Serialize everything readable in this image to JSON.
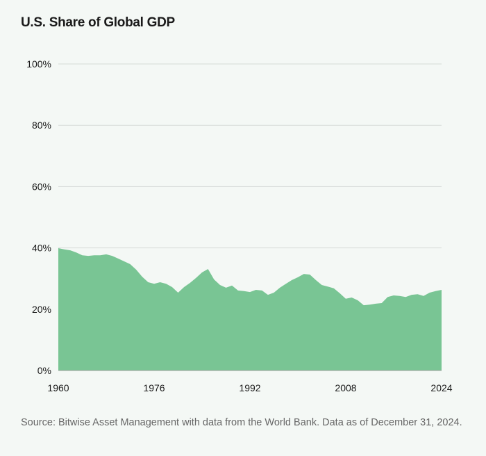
{
  "chart_data": {
    "type": "area",
    "title": "U.S. Share of Global GDP",
    "xlabel": "",
    "ylabel": "",
    "xlim": [
      1960,
      2024
    ],
    "ylim": [
      0,
      100
    ],
    "x_ticks": [
      "1960",
      "1976",
      "1992",
      "2008",
      "2024"
    ],
    "y_ticks": [
      "0%",
      "20%",
      "40%",
      "60%",
      "80%",
      "100%"
    ],
    "grid": true,
    "color": "#79c594",
    "x": [
      1960,
      1961,
      1962,
      1963,
      1964,
      1965,
      1966,
      1967,
      1968,
      1969,
      1970,
      1971,
      1972,
      1973,
      1974,
      1975,
      1976,
      1977,
      1978,
      1979,
      1980,
      1981,
      1982,
      1983,
      1984,
      1985,
      1986,
      1987,
      1988,
      1989,
      1990,
      1991,
      1992,
      1993,
      1994,
      1995,
      1996,
      1997,
      1998,
      1999,
      2000,
      2001,
      2002,
      2003,
      2004,
      2005,
      2006,
      2007,
      2008,
      2009,
      2010,
      2011,
      2012,
      2013,
      2014,
      2015,
      2016,
      2017,
      2018,
      2019,
      2020,
      2021,
      2022,
      2023,
      2024
    ],
    "values": [
      39.9,
      39.5,
      39.2,
      38.5,
      37.6,
      37.4,
      37.6,
      37.6,
      37.9,
      37.4,
      36.5,
      35.6,
      34.7,
      32.9,
      30.6,
      28.8,
      28.3,
      28.8,
      28.3,
      27.2,
      25.4,
      27.2,
      28.6,
      30.2,
      32.0,
      33.1,
      29.7,
      27.9,
      27.0,
      27.7,
      26.1,
      25.9,
      25.6,
      26.3,
      26.1,
      24.7,
      25.4,
      27.0,
      28.3,
      29.5,
      30.4,
      31.5,
      31.3,
      29.5,
      27.9,
      27.4,
      26.8,
      25.2,
      23.4,
      23.8,
      22.9,
      21.3,
      21.5,
      21.8,
      22.0,
      24.0,
      24.5,
      24.3,
      24.0,
      24.7,
      24.9,
      24.3,
      25.4,
      25.9,
      26.3
    ]
  },
  "source": "Source: Bitwise Asset Management with data from the World Bank. Data as of December 31, 2024."
}
